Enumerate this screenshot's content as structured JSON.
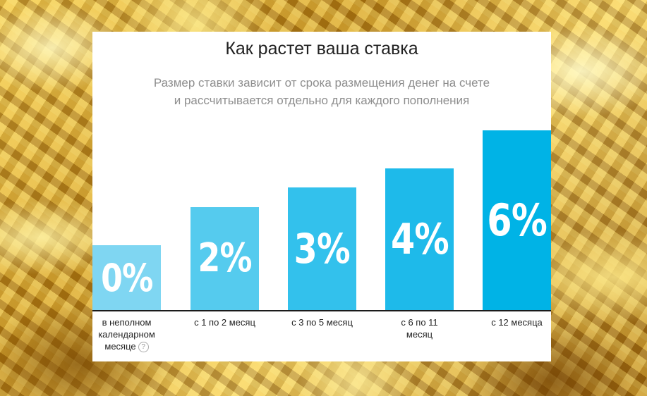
{
  "chart_data": {
    "type": "bar",
    "title": "Как растет ваша ставка",
    "subtitle": [
      "Размер ставки зависит от срока размещения денег на счете",
      "и рассчитывается отдельно для каждого пополнения"
    ],
    "categories": [
      [
        "в неполном",
        "календарном",
        "месяце"
      ],
      [
        "с 1 по 2 месяц"
      ],
      [
        "с 3 по 5 месяц"
      ],
      [
        "с 6 по 11",
        "месяц"
      ],
      [
        "с 12 месяца"
      ]
    ],
    "values": [
      0,
      2,
      3,
      4,
      6
    ],
    "value_labels": [
      "0%",
      "2%",
      "3%",
      "4%",
      "6%"
    ],
    "bar_colors": [
      "#7fd6f2",
      "#55cbee",
      "#33c1ec",
      "#1ebaea",
      "#00b3e6"
    ],
    "help_icon": "question-circle-icon",
    "help_icon_glyph": "?",
    "ylim": [
      0,
      6
    ],
    "grid": false,
    "legend": "none"
  }
}
